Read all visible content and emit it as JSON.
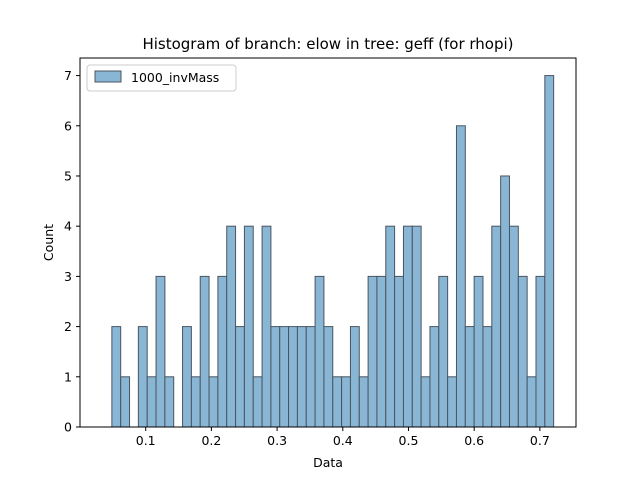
{
  "chart_data": {
    "type": "bar",
    "title": "Histogram of branch: elow in tree: geff (for rhopi)",
    "xlabel": "Data",
    "ylabel": "Count",
    "xlim": [
      0.0,
      0.755
    ],
    "ylim": [
      0,
      7.35
    ],
    "xticks": [
      0.1,
      0.2,
      0.3,
      0.4,
      0.5,
      0.6,
      0.7
    ],
    "xtick_labels": [
      "0.1",
      "0.2",
      "0.3",
      "0.4",
      "0.5",
      "0.6",
      "0.7"
    ],
    "yticks": [
      0,
      1,
      2,
      3,
      4,
      5,
      6,
      7
    ],
    "ytick_labels": [
      "0",
      "1",
      "2",
      "3",
      "4",
      "5",
      "6",
      "7"
    ],
    "legend_position": "top-left",
    "grid": false,
    "series": [
      {
        "name": "1000_invMass",
        "color": "#8ab6d6",
        "edge_color": "#4a5560",
        "bin_start": 0.0485,
        "bin_width": 0.01345,
        "counts": [
          2,
          1,
          0,
          2,
          1,
          3,
          1,
          0,
          2,
          1,
          3,
          1,
          3,
          4,
          2,
          4,
          1,
          4,
          2,
          2,
          2,
          2,
          2,
          3,
          2,
          1,
          1,
          2,
          1,
          3,
          3,
          4,
          3,
          4,
          4,
          1,
          2,
          3,
          1,
          6,
          2,
          3,
          2,
          4,
          5,
          4,
          3,
          1,
          3,
          7
        ]
      }
    ]
  }
}
